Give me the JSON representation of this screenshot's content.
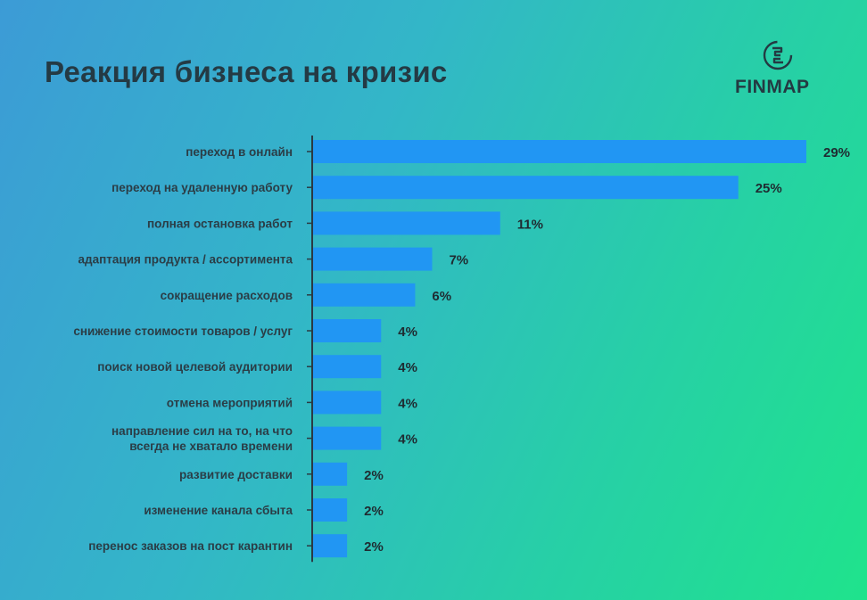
{
  "header": {
    "title": "Реакция бизнеса на кризис"
  },
  "brand": {
    "name": "FINMAP",
    "icon": "finmap-logo-icon"
  },
  "colors": {
    "bar": "#2196f3",
    "axis": "#2a3a44",
    "text": "#2b3d46"
  },
  "chart_data": {
    "type": "bar",
    "orientation": "horizontal",
    "title": "Реакция бизнеса на кризис",
    "categories": [
      [
        "переход в онлайн"
      ],
      [
        "переход на удаленную работу"
      ],
      [
        "полная остановка работ"
      ],
      [
        "адаптация продукта / ассортимента"
      ],
      [
        "сокращение расходов"
      ],
      [
        "снижение стоимости товаров / услуг"
      ],
      [
        "поиск новой целевой аудитории"
      ],
      [
        "отмена мероприятий"
      ],
      [
        "направление сил на то, на что",
        "всегда не хватало времени"
      ],
      [
        "развитие доставки"
      ],
      [
        "изменение канала сбыта"
      ],
      [
        "перенос заказов на пост карантин"
      ]
    ],
    "values": [
      29,
      25,
      11,
      7,
      6,
      4,
      4,
      4,
      4,
      2,
      2,
      2
    ],
    "value_labels": [
      "29%",
      "25%",
      "11%",
      "7%",
      "6%",
      "4%",
      "4%",
      "4%",
      "4%",
      "2%",
      "2%",
      "2%"
    ],
    "unit": "%",
    "xlim": [
      0,
      29
    ],
    "grid": false,
    "legend": "none"
  }
}
